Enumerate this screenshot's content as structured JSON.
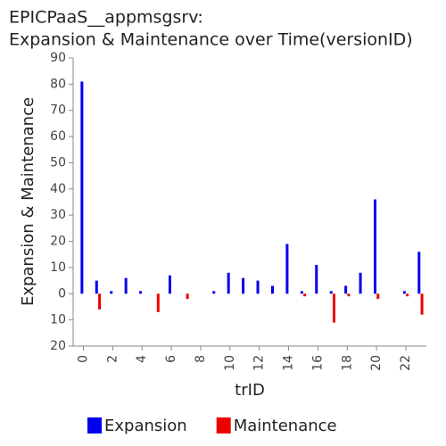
{
  "chart_data": {
    "type": "bar",
    "title": [
      "EPICPaaS__appmsgsrv:",
      "Expansion & Maintenance over Time(versionID)"
    ],
    "x_label": "trID",
    "y_label": "Expansion & Maintenance",
    "x": [
      0,
      1,
      2,
      3,
      4,
      5,
      6,
      7,
      8,
      9,
      10,
      11,
      12,
      13,
      14,
      15,
      16,
      17,
      18,
      19,
      20,
      21,
      22,
      23
    ],
    "series": [
      {
        "name": "Expansion",
        "color": "#0000ee",
        "values": [
          81,
          5,
          1,
          6,
          1,
          0,
          7,
          0,
          0,
          1,
          8,
          6,
          5,
          3,
          19,
          1,
          11,
          1,
          3,
          8,
          36,
          0,
          1,
          16
        ]
      },
      {
        "name": "Maintenance",
        "color": "#ee0000",
        "values": [
          0,
          -6,
          0,
          0,
          0,
          -7,
          0,
          -2,
          0,
          0,
          0,
          0,
          0,
          0,
          0,
          -1,
          0,
          -11,
          -1,
          0,
          -2,
          0,
          -1,
          -8
        ]
      }
    ],
    "xlim": [
      -0.7,
      23.4
    ],
    "xticks": [
      0,
      2,
      4,
      6,
      8,
      10,
      12,
      14,
      16,
      18,
      20,
      22
    ],
    "ylim": [
      -20,
      90
    ],
    "yticks": [
      {
        "value": -20,
        "label": "20"
      },
      {
        "value": -10,
        "label": "10"
      },
      0,
      10,
      20,
      30,
      40,
      50,
      60,
      70,
      80,
      90
    ],
    "grid": false,
    "legend": "bottom"
  }
}
